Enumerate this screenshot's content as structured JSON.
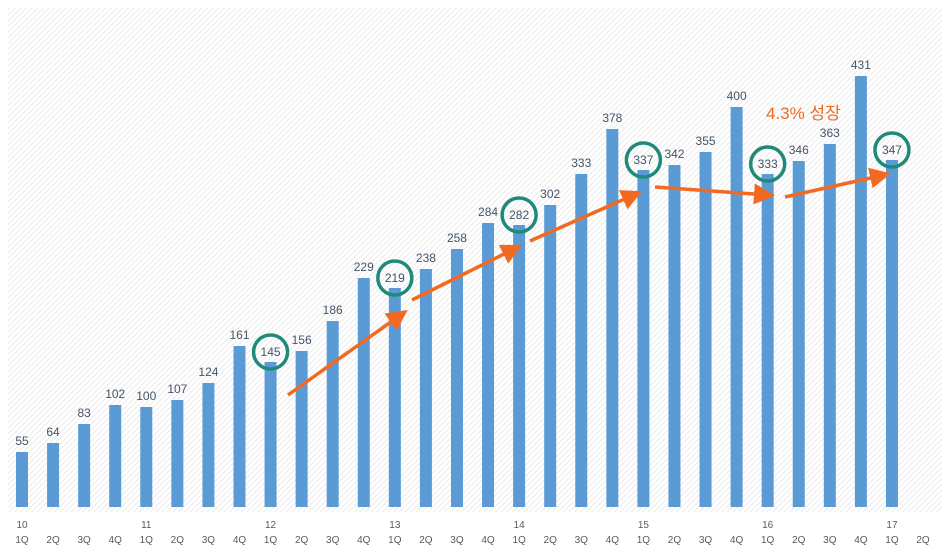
{
  "chart_data": {
    "type": "bar",
    "title": "",
    "xlabel": "",
    "ylabel": "",
    "ylim": [
      0,
      500
    ],
    "grid": false,
    "legend": "none",
    "bar_color": "#5b9bd5",
    "categories": [
      {
        "year": "10",
        "q": "1Q"
      },
      {
        "year": "",
        "q": "2Q"
      },
      {
        "year": "",
        "q": "3Q"
      },
      {
        "year": "",
        "q": "4Q"
      },
      {
        "year": "11",
        "q": "1Q"
      },
      {
        "year": "",
        "q": "2Q"
      },
      {
        "year": "",
        "q": "3Q"
      },
      {
        "year": "",
        "q": "4Q"
      },
      {
        "year": "12",
        "q": "1Q"
      },
      {
        "year": "",
        "q": "2Q"
      },
      {
        "year": "",
        "q": "3Q"
      },
      {
        "year": "",
        "q": "4Q"
      },
      {
        "year": "13",
        "q": "1Q"
      },
      {
        "year": "",
        "q": "2Q"
      },
      {
        "year": "",
        "q": "3Q"
      },
      {
        "year": "",
        "q": "4Q"
      },
      {
        "year": "14",
        "q": "1Q"
      },
      {
        "year": "",
        "q": "2Q"
      },
      {
        "year": "",
        "q": "3Q"
      },
      {
        "year": "",
        "q": "4Q"
      },
      {
        "year": "15",
        "q": "1Q"
      },
      {
        "year": "",
        "q": "2Q"
      },
      {
        "year": "",
        "q": "3Q"
      },
      {
        "year": "",
        "q": "4Q"
      },
      {
        "year": "16",
        "q": "1Q"
      },
      {
        "year": "",
        "q": "2Q"
      },
      {
        "year": "",
        "q": "3Q"
      },
      {
        "year": "",
        "q": "4Q"
      },
      {
        "year": "17",
        "q": "1Q"
      },
      {
        "year": "",
        "q": "2Q"
      }
    ],
    "values": [
      55,
      64,
      83,
      102,
      100,
      107,
      124,
      161,
      145,
      156,
      186,
      229,
      219,
      238,
      258,
      284,
      282,
      302,
      333,
      378,
      337,
      342,
      355,
      400,
      333,
      346,
      363,
      431,
      347,
      null
    ],
    "highlighted": [
      8,
      12,
      16,
      20,
      24,
      28
    ],
    "highlight_color": "#1f8a7a",
    "trend_color": "#f26a21",
    "annotation": "4.3% 성장"
  }
}
